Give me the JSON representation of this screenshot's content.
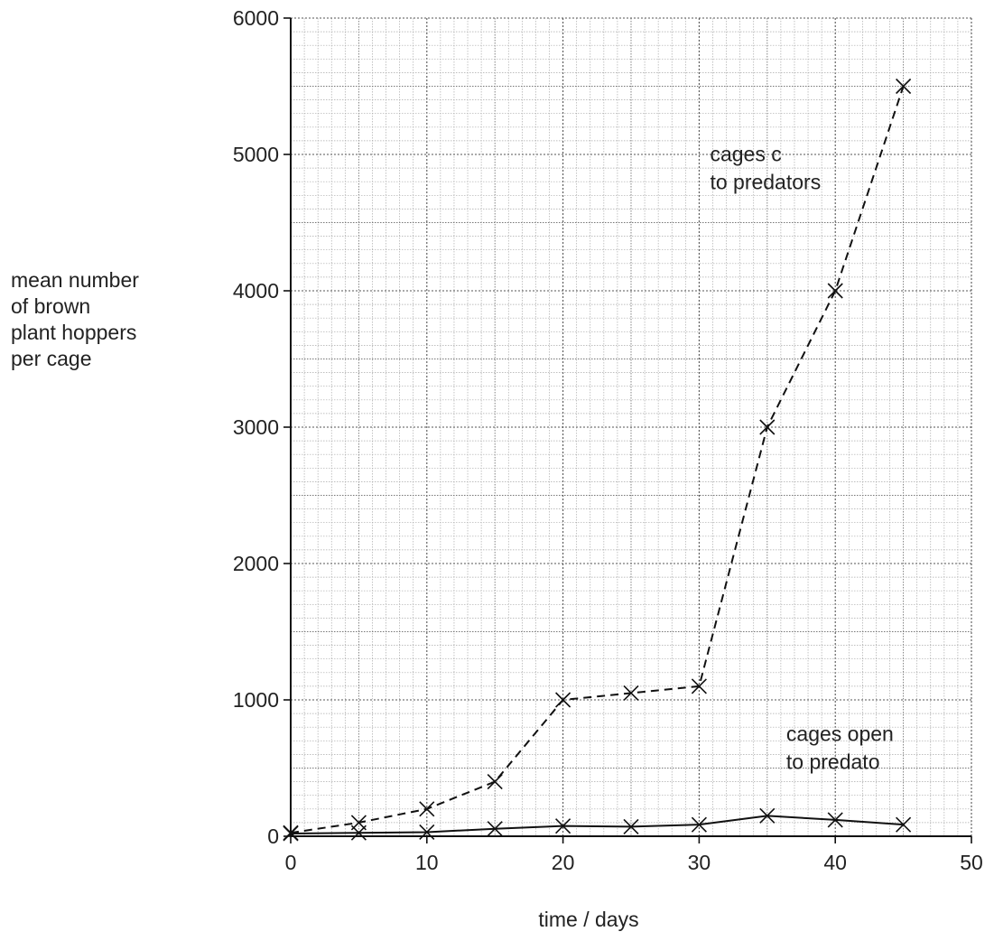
{
  "chart_data": {
    "type": "line",
    "title": "",
    "xlabel": "time / days",
    "ylabel_lines": [
      "mean number",
      "of brown",
      "plant hoppers",
      "per cage"
    ],
    "xlim": [
      0,
      50
    ],
    "ylim": [
      0,
      6000
    ],
    "x_ticks": [
      0,
      10,
      20,
      30,
      40,
      50
    ],
    "y_ticks": [
      0,
      1000,
      2000,
      3000,
      4000,
      5000,
      6000
    ],
    "grid": true,
    "series": [
      {
        "name": "cages closed to predators",
        "style": "dashed",
        "x": [
          0,
          5,
          10,
          15,
          20,
          25,
          30,
          35,
          40,
          45
        ],
        "y": [
          25,
          100,
          200,
          400,
          1000,
          1050,
          1100,
          3000,
          4000,
          5500
        ]
      },
      {
        "name": "cages open to predators",
        "style": "solid",
        "x": [
          0,
          5,
          10,
          15,
          20,
          25,
          30,
          35,
          40,
          45
        ],
        "y": [
          20,
          25,
          30,
          55,
          75,
          70,
          85,
          150,
          120,
          85
        ]
      }
    ],
    "annotations": [
      {
        "lines": [
          "cages c",
          "to predators"
        ],
        "x": 30.8,
        "y": 4950
      },
      {
        "lines": [
          "cages open",
          "to predato"
        ],
        "x": 36.4,
        "y": 700
      }
    ]
  }
}
